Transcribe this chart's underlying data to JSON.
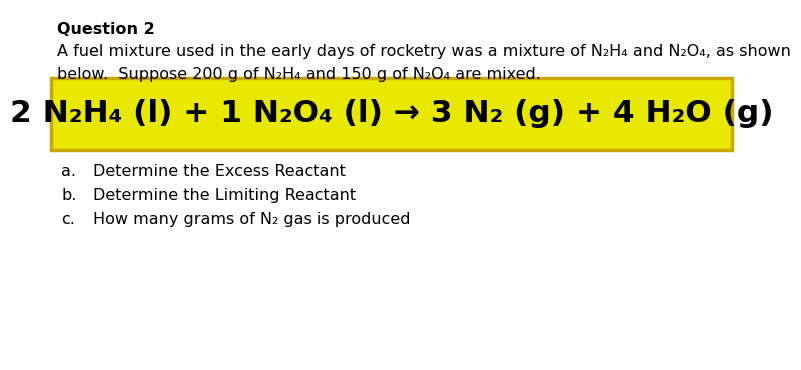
{
  "background_color": "#ffffff",
  "title": "Question 2",
  "line1": "A fuel mixture used in the early days of rocketry was a mixture of N₂H₄ and N₂O₄, as shown",
  "line2": "below.  Suppose 200 g of N₂H₄ and 150 g of N₂O₄ are mixed.",
  "equation": "2 N₂H₄ (l) + 1 N₂O₄ (l) → 3 N₂ (g) + 4 H₂O (g)",
  "equation_bg": "#e8e800",
  "equation_border": "#c8a800",
  "items": [
    "Determine the Excess Reactant",
    "Determine the Limiting Reactant",
    "How many grams of N₂ gas is produced"
  ],
  "item_labels": [
    "a.",
    "b.",
    "c."
  ],
  "body_fontsize": 11.5,
  "eq_fontsize": 22.5,
  "title_fontsize": 11.5
}
